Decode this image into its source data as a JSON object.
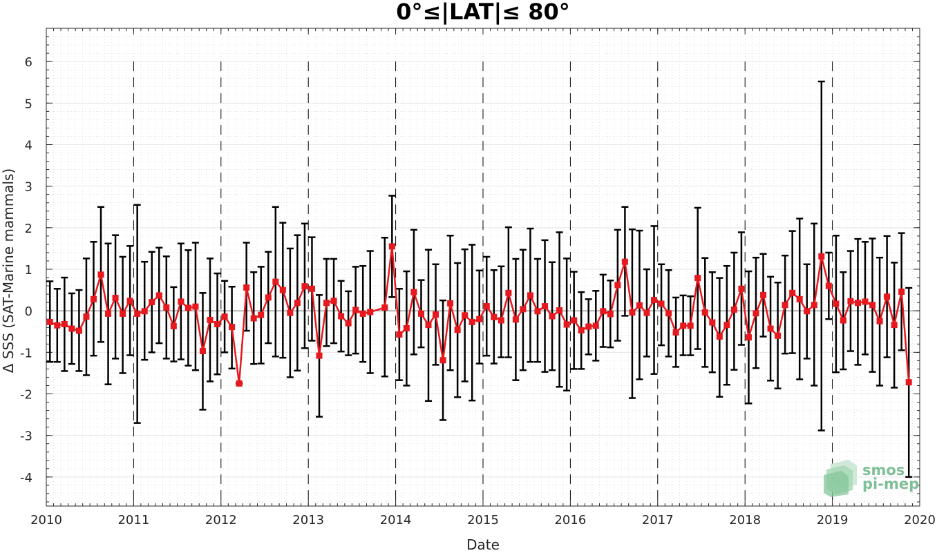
{
  "chart_data": {
    "type": "line",
    "title": "0°≤|LAT|≤ 80°",
    "xlabel": "Date",
    "ylabel": "Δ SSS (SAT-Marine mammals)",
    "xlim": [
      2010,
      2020
    ],
    "ylim": [
      -4.7,
      6.8
    ],
    "x_ticks": [
      "2010",
      "2011",
      "2012",
      "2013",
      "2014",
      "2015",
      "2016",
      "2017",
      "2018",
      "2019",
      "2020"
    ],
    "y_ticks": [
      "-4",
      "-3",
      "-2",
      "-1",
      "0",
      "1",
      "2",
      "3",
      "4",
      "5",
      "6"
    ],
    "grid": true,
    "minor_grid": true,
    "year_boundary_lines": "dashed",
    "series": [
      {
        "color": "#e6191e",
        "marker": "square",
        "errorbar_color": "#000000",
        "x": [
          "2010-01",
          "2010-02",
          "2010-03",
          "2010-04",
          "2010-05",
          "2010-06",
          "2010-07",
          "2010-08",
          "2010-09",
          "2010-10",
          "2010-11",
          "2010-12",
          "2011-01",
          "2011-02",
          "2011-03",
          "2011-04",
          "2011-05",
          "2011-06",
          "2011-07",
          "2011-08",
          "2011-09",
          "2011-10",
          "2011-11",
          "2011-12",
          "2012-01",
          "2012-02",
          "2012-03",
          "2012-04",
          "2012-05",
          "2012-06",
          "2012-07",
          "2012-08",
          "2012-09",
          "2012-10",
          "2012-11",
          "2012-12",
          "2013-01",
          "2013-02",
          "2013-03",
          "2013-04",
          "2013-05",
          "2013-06",
          "2013-07",
          "2013-08",
          "2013-09",
          "2013-11",
          "2013-12",
          "2014-01",
          "2014-02",
          "2014-03",
          "2014-04",
          "2014-05",
          "2014-06",
          "2014-07",
          "2014-08",
          "2014-09",
          "2014-10",
          "2014-11",
          "2014-12",
          "2015-01",
          "2015-02",
          "2015-03",
          "2015-04",
          "2015-05",
          "2015-06",
          "2015-07",
          "2015-08",
          "2015-09",
          "2015-10",
          "2015-11",
          "2015-12",
          "2016-01",
          "2016-02",
          "2016-03",
          "2016-04",
          "2016-05",
          "2016-06",
          "2016-07",
          "2016-08",
          "2016-09",
          "2016-10",
          "2016-11",
          "2016-12",
          "2017-01",
          "2017-02",
          "2017-03",
          "2017-04",
          "2017-05",
          "2017-06",
          "2017-07",
          "2017-08",
          "2017-09",
          "2017-10",
          "2017-11",
          "2017-12",
          "2018-01",
          "2018-02",
          "2018-03",
          "2018-04",
          "2018-05",
          "2018-06",
          "2018-07",
          "2018-08",
          "2018-09",
          "2018-10",
          "2018-11",
          "2018-12",
          "2019-01",
          "2019-02",
          "2019-03",
          "2019-04",
          "2019-05",
          "2019-06",
          "2019-07",
          "2019-08",
          "2019-09",
          "2019-10",
          "2019-11"
        ],
        "y": [
          -0.27,
          -0.35,
          -0.32,
          -0.43,
          -0.48,
          -0.14,
          0.28,
          0.87,
          -0.07,
          0.31,
          -0.07,
          0.24,
          -0.07,
          -0.01,
          0.21,
          0.37,
          0.08,
          -0.37,
          0.22,
          0.07,
          0.1,
          -0.97,
          -0.22,
          -0.32,
          -0.14,
          -0.39,
          -1.75,
          0.56,
          -0.18,
          -0.1,
          0.32,
          0.7,
          0.5,
          -0.05,
          0.19,
          0.59,
          0.53,
          -1.08,
          0.19,
          0.24,
          -0.13,
          -0.3,
          0.02,
          -0.07,
          -0.03,
          0.08,
          1.55,
          -0.57,
          -0.42,
          0.45,
          -0.07,
          -0.34,
          -0.09,
          -1.19,
          0.18,
          -0.46,
          -0.11,
          -0.27,
          -0.2,
          0.11,
          -0.15,
          -0.23,
          0.43,
          -0.21,
          0.04,
          0.37,
          -0.01,
          0.11,
          -0.13,
          0.01,
          -0.33,
          -0.23,
          -0.47,
          -0.38,
          -0.36,
          -0.01,
          -0.08,
          0.62,
          1.18,
          -0.04,
          0.13,
          -0.05,
          0.26,
          0.17,
          -0.06,
          -0.52,
          -0.36,
          -0.36,
          0.79,
          -0.04,
          -0.28,
          -0.62,
          -0.34,
          0.03,
          0.53,
          -0.64,
          -0.06,
          0.38,
          -0.43,
          -0.6,
          0.14,
          0.43,
          0.28,
          -0.01,
          0.14,
          1.31,
          0.6,
          0.17,
          -0.23,
          0.23,
          0.19,
          0.22,
          0.14,
          -0.25,
          0.34,
          -0.34,
          0.46,
          -1.72
        ],
        "err_low": [
          -1.23,
          -1.23,
          -1.45,
          -1.28,
          -1.45,
          -1.55,
          -1.08,
          -0.75,
          -1.77,
          -1.15,
          -1.5,
          -1.07,
          -2.7,
          -1.18,
          -1.0,
          -0.78,
          -1.15,
          -1.22,
          -1.17,
          -1.32,
          -1.43,
          -2.38,
          -1.7,
          -1.53,
          -1.0,
          -1.39,
          -1.75,
          -0.48,
          -1.28,
          -1.27,
          -0.78,
          -1.1,
          -1.13,
          -1.6,
          -1.44,
          -0.9,
          -0.72,
          -2.55,
          -0.85,
          -0.78,
          -0.98,
          -1.07,
          -1.03,
          -1.23,
          -1.5,
          -1.58,
          0.33,
          -1.67,
          -1.8,
          -1.05,
          -0.88,
          -2.17,
          -1.3,
          -2.63,
          -1.43,
          -2.08,
          -1.7,
          -2.16,
          -1.27,
          -1.08,
          -1.27,
          -1.12,
          -1.12,
          -1.67,
          -1.43,
          -1.23,
          -1.23,
          -1.47,
          -1.43,
          -1.83,
          -1.92,
          -1.4,
          -1.4,
          -1.05,
          -1.2,
          -0.87,
          -0.88,
          -0.72,
          -0.12,
          -2.1,
          -1.65,
          -1.1,
          -1.52,
          -0.83,
          -1.1,
          -1.35,
          -1.07,
          -1.07,
          -0.92,
          -1.35,
          -1.48,
          -2.07,
          -1.78,
          -1.42,
          -0.82,
          -2.23,
          -1.38,
          -0.62,
          -1.68,
          -1.87,
          -1.03,
          -1.02,
          -1.65,
          -1.15,
          -1.8,
          -2.88,
          -0.2,
          -1.48,
          -1.41,
          -0.97,
          -1.3,
          -1.05,
          -1.47,
          -1.8,
          -1.12,
          -1.85,
          -0.95,
          -4.0
        ],
        "err_high": [
          0.71,
          0.53,
          0.8,
          0.42,
          0.5,
          1.26,
          1.66,
          2.5,
          1.62,
          1.82,
          1.3,
          1.56,
          2.55,
          1.18,
          1.42,
          1.52,
          1.31,
          0.57,
          1.62,
          1.46,
          1.64,
          0.43,
          1.26,
          0.9,
          0.72,
          0.58,
          -1.75,
          1.64,
          0.93,
          1.06,
          1.42,
          2.5,
          2.12,
          1.5,
          1.82,
          2.1,
          1.77,
          0.38,
          1.25,
          1.25,
          0.72,
          0.47,
          1.06,
          1.08,
          1.44,
          1.76,
          2.77,
          0.53,
          0.95,
          1.95,
          0.74,
          1.47,
          1.12,
          0.25,
          1.81,
          1.15,
          1.48,
          1.59,
          0.97,
          1.3,
          0.98,
          1.07,
          2.01,
          1.25,
          1.47,
          1.98,
          1.25,
          1.7,
          1.17,
          1.89,
          1.26,
          0.94,
          0.45,
          0.28,
          0.48,
          0.87,
          0.73,
          1.95,
          2.5,
          1.96,
          1.93,
          1.0,
          2.04,
          1.12,
          0.98,
          0.32,
          0.37,
          0.35,
          2.48,
          1.27,
          0.93,
          0.79,
          1.08,
          1.4,
          1.89,
          0.95,
          1.28,
          1.37,
          0.82,
          0.68,
          1.33,
          1.92,
          2.22,
          1.12,
          2.1,
          5.52,
          1.4,
          1.81,
          0.93,
          1.44,
          1.73,
          1.66,
          1.74,
          1.28,
          1.8,
          1.16,
          1.87,
          0.55
        ]
      }
    ]
  },
  "logo": {
    "line1": "smos",
    "line2": "pi-mep"
  }
}
